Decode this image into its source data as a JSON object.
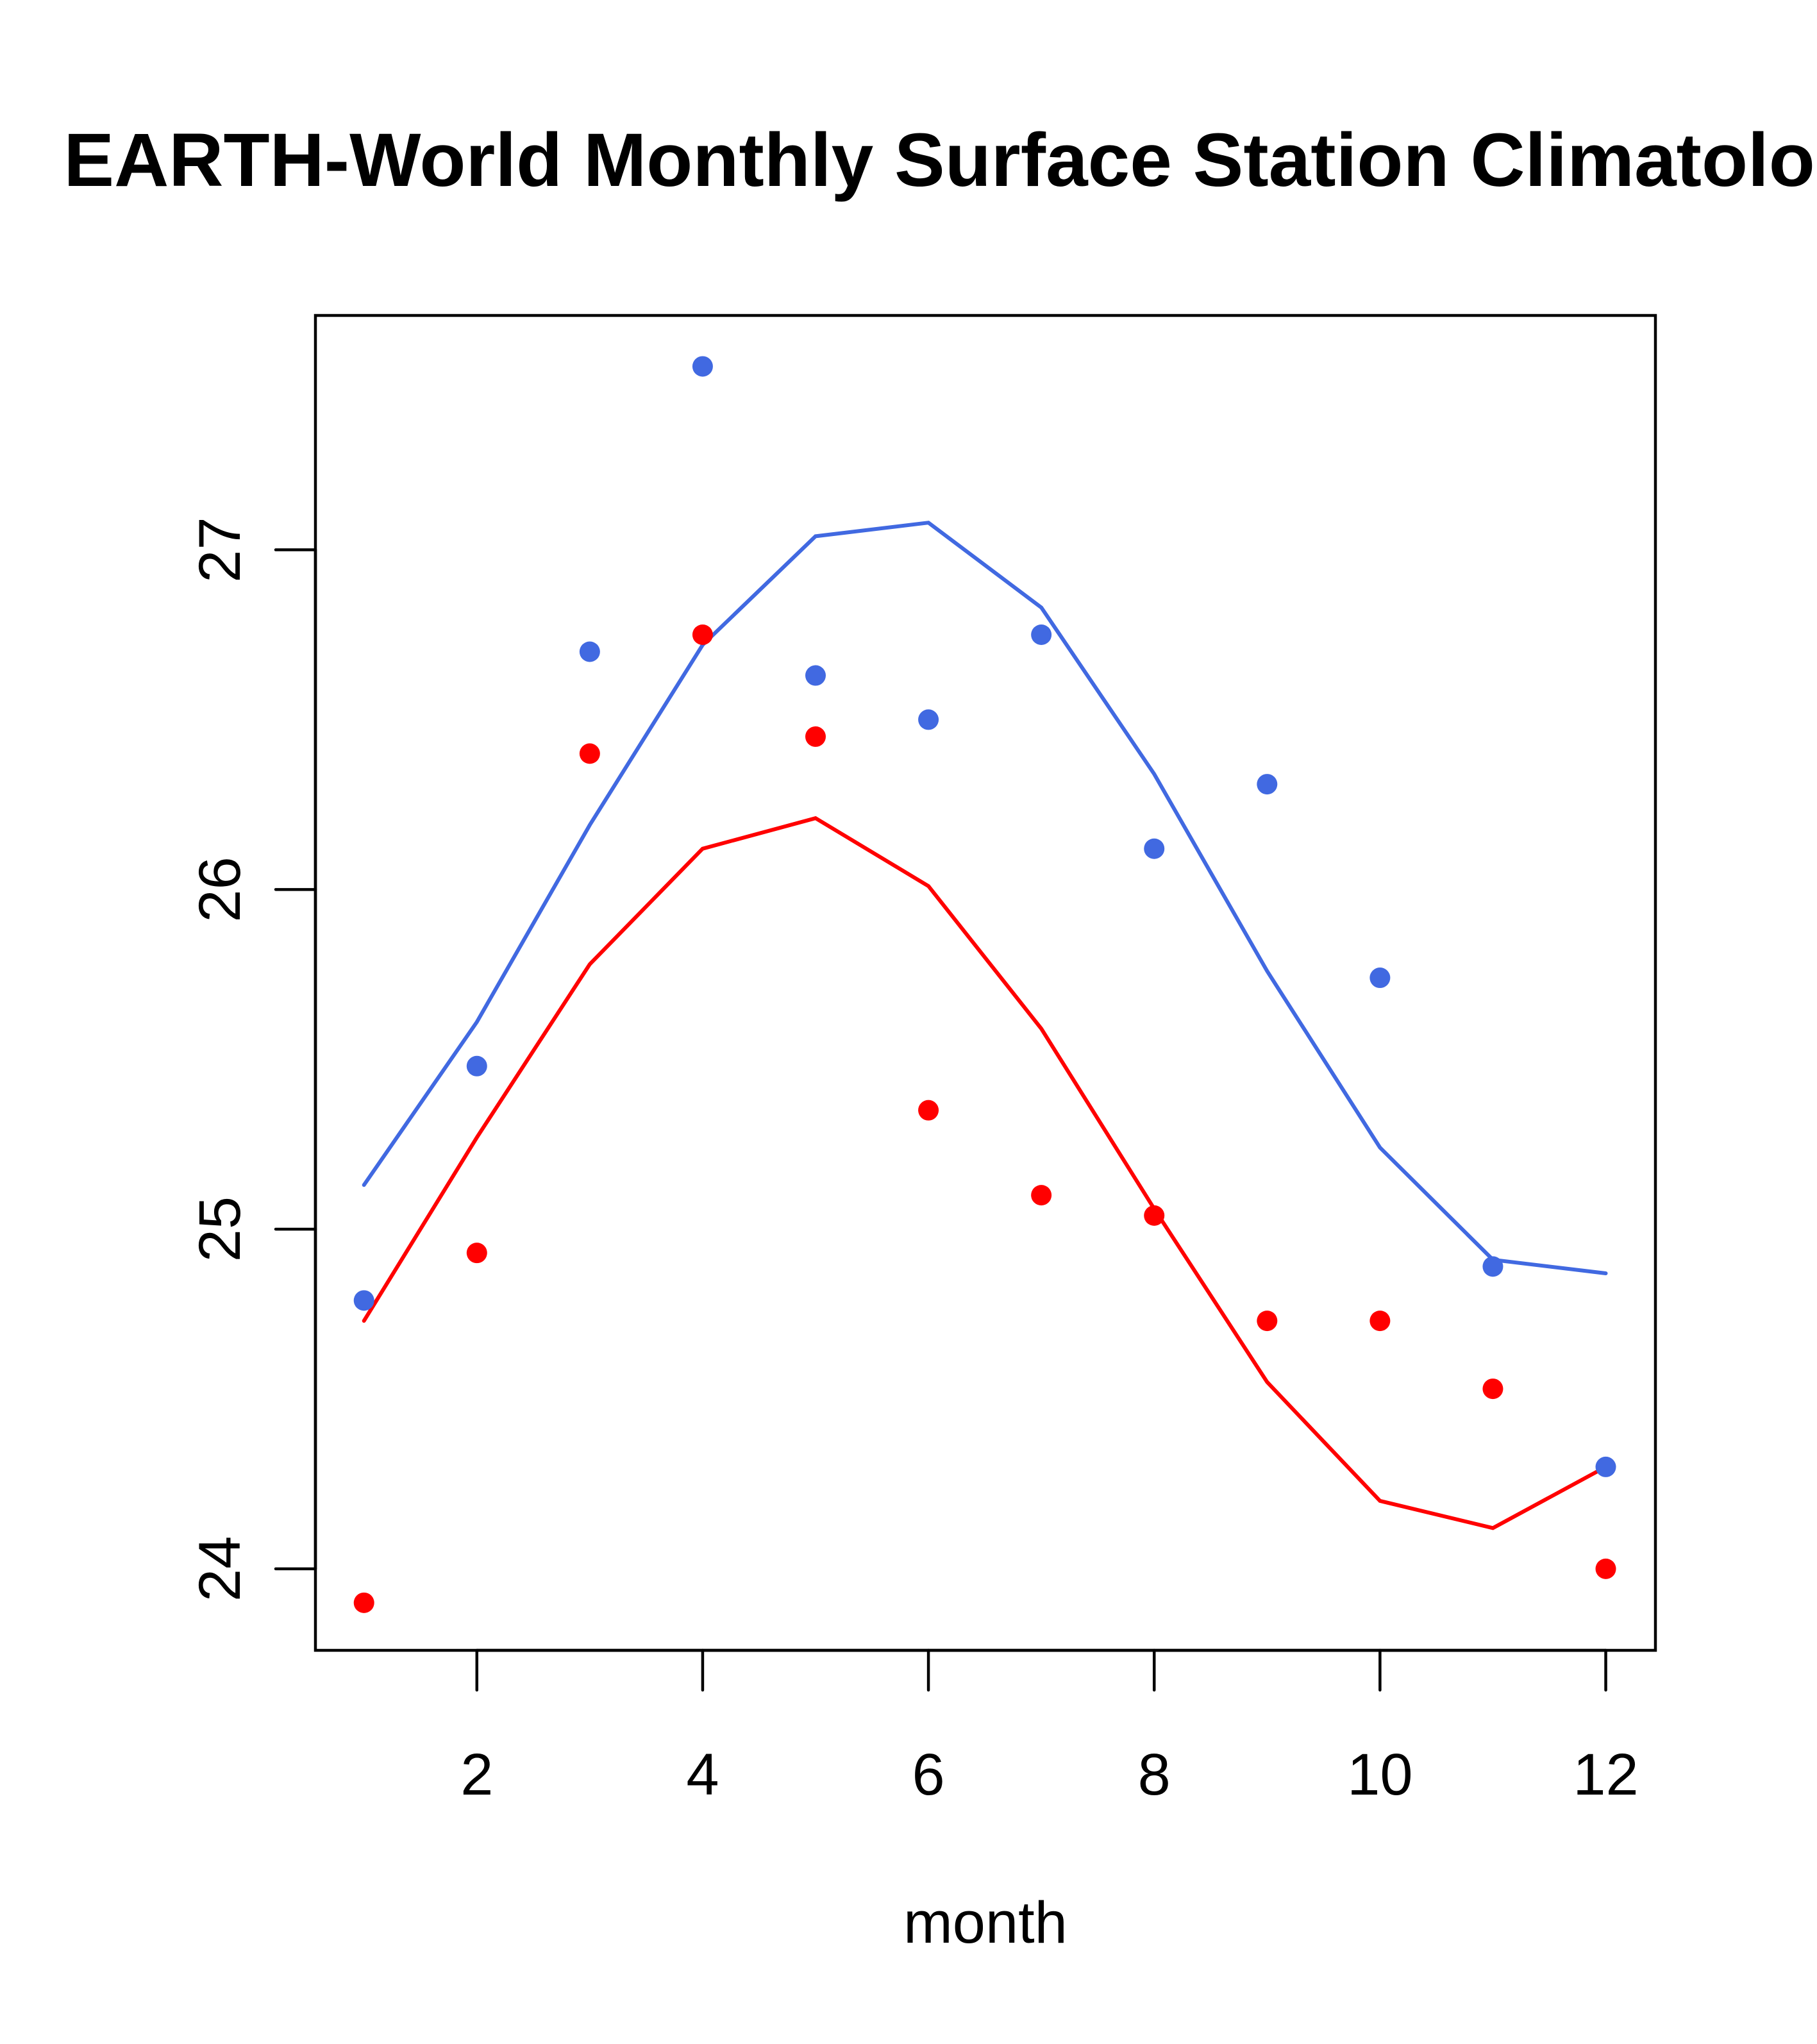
{
  "chart_data": {
    "type": "line",
    "title": "EARTH-World Monthly Surface Station Climatology",
    "xlabel": "month",
    "ylabel": "",
    "xlim": [
      0.57,
      12.44
    ],
    "ylim": [
      23.76,
      27.69
    ],
    "xticks": [
      2,
      4,
      6,
      8,
      10,
      12
    ],
    "xtick_labels": [
      "2",
      "4",
      "6",
      "8",
      "10",
      "12"
    ],
    "yticks": [
      24,
      25,
      26,
      27
    ],
    "ytick_labels": [
      "24",
      "25",
      "26",
      "27"
    ],
    "grid": false,
    "legend": null,
    "x": [
      1,
      2,
      3,
      4,
      5,
      6,
      7,
      8,
      9,
      10,
      11,
      12
    ],
    "series": [
      {
        "name": "blue points",
        "kind": "points",
        "color": "#4169E1",
        "values": [
          24.79,
          25.48,
          26.7,
          27.54,
          26.63,
          26.5,
          26.75,
          26.12,
          26.31,
          25.74,
          24.89,
          24.3
        ]
      },
      {
        "name": "red points",
        "kind": "points",
        "color": "#FF0000",
        "values": [
          23.9,
          24.93,
          26.4,
          26.75,
          26.45,
          25.35,
          25.1,
          25.04,
          24.73,
          24.73,
          24.53,
          24.0
        ]
      },
      {
        "name": "blue line",
        "kind": "line",
        "color": "#4169E1",
        "values": [
          25.13,
          25.61,
          26.19,
          26.72,
          27.04,
          27.08,
          26.83,
          26.34,
          25.76,
          25.24,
          24.91,
          24.87
        ]
      },
      {
        "name": "red line",
        "kind": "line",
        "color": "#FF0000",
        "values": [
          24.73,
          25.27,
          25.78,
          26.12,
          26.21,
          26.01,
          25.59,
          25.06,
          24.55,
          24.2,
          24.12,
          24.3
        ]
      }
    ]
  }
}
